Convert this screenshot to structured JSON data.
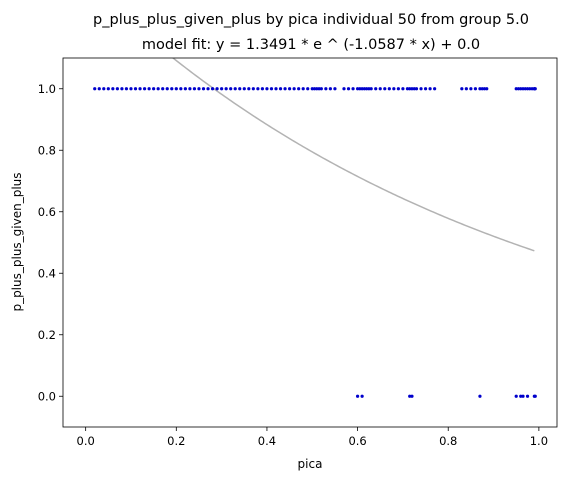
{
  "chart_data": {
    "type": "scatter",
    "title": "p_plus_plus_given_plus by pica individual 50 from group 5.0",
    "subtitle": "model fit: y = 1.3491 * e ^ (-1.0587 * x) + 0.0",
    "xlabel": "pica",
    "ylabel": "p_plus_plus_given_plus",
    "xlim": [
      -0.05,
      1.04
    ],
    "ylim": [
      -0.1,
      1.1
    ],
    "x_ticks": [
      0.0,
      0.2,
      0.4,
      0.6,
      0.8,
      1.0
    ],
    "x_tick_labels": [
      "0.0",
      "0.2",
      "0.4",
      "0.6",
      "0.8",
      "1.0"
    ],
    "y_ticks": [
      0.0,
      0.2,
      0.4,
      0.6,
      0.8,
      1.0
    ],
    "y_tick_labels": [
      "0.0",
      "0.2",
      "0.4",
      "0.6",
      "0.8",
      "1.0"
    ],
    "grid": false,
    "legend": "none",
    "series": [
      {
        "kind": "points",
        "color": "#0000cc",
        "x": [
          0.02,
          0.03,
          0.04,
          0.05,
          0.06,
          0.07,
          0.08,
          0.09,
          0.1,
          0.11,
          0.12,
          0.13,
          0.14,
          0.15,
          0.16,
          0.17,
          0.18,
          0.19,
          0.2,
          0.21,
          0.22,
          0.23,
          0.24,
          0.25,
          0.26,
          0.27,
          0.28,
          0.29,
          0.3,
          0.31,
          0.32,
          0.33,
          0.34,
          0.35,
          0.36,
          0.37,
          0.38,
          0.39,
          0.4,
          0.41,
          0.42,
          0.43,
          0.44,
          0.45,
          0.46,
          0.47,
          0.48,
          0.49,
          0.5,
          0.505,
          0.51,
          0.515,
          0.52,
          0.53,
          0.54,
          0.55,
          0.57,
          0.58,
          0.59,
          0.6,
          0.605,
          0.61,
          0.615,
          0.62,
          0.625,
          0.63,
          0.64,
          0.65,
          0.66,
          0.67,
          0.68,
          0.69,
          0.7,
          0.71,
          0.715,
          0.72,
          0.725,
          0.73,
          0.74,
          0.75,
          0.76,
          0.77,
          0.83,
          0.84,
          0.85,
          0.86,
          0.87,
          0.875,
          0.88,
          0.885,
          0.95,
          0.955,
          0.96,
          0.965,
          0.97,
          0.975,
          0.98,
          0.985,
          0.99,
          0.99,
          0.992,
          0.6,
          0.61,
          0.715,
          0.72,
          0.87,
          0.95,
          0.96,
          0.965,
          0.975,
          0.99,
          0.992
        ],
        "y": [
          1,
          1,
          1,
          1,
          1,
          1,
          1,
          1,
          1,
          1,
          1,
          1,
          1,
          1,
          1,
          1,
          1,
          1,
          1,
          1,
          1,
          1,
          1,
          1,
          1,
          1,
          1,
          1,
          1,
          1,
          1,
          1,
          1,
          1,
          1,
          1,
          1,
          1,
          1,
          1,
          1,
          1,
          1,
          1,
          1,
          1,
          1,
          1,
          1,
          1,
          1,
          1,
          1,
          1,
          1,
          1,
          1,
          1,
          1,
          1,
          1,
          1,
          1,
          1,
          1,
          1,
          1,
          1,
          1,
          1,
          1,
          1,
          1,
          1,
          1,
          1,
          1,
          1,
          1,
          1,
          1,
          1,
          1,
          1,
          1,
          1,
          1,
          1,
          1,
          1,
          1,
          1,
          1,
          1,
          1,
          1,
          1,
          1,
          1,
          1,
          1,
          0,
          0,
          0,
          0,
          0,
          0,
          0,
          0,
          0,
          0,
          0
        ]
      },
      {
        "kind": "line",
        "color": "#b3b3b3",
        "x_range": [
          0.0,
          0.99
        ],
        "model": {
          "a": 1.3491,
          "b": -1.0587,
          "c": 0.0
        }
      }
    ]
  }
}
